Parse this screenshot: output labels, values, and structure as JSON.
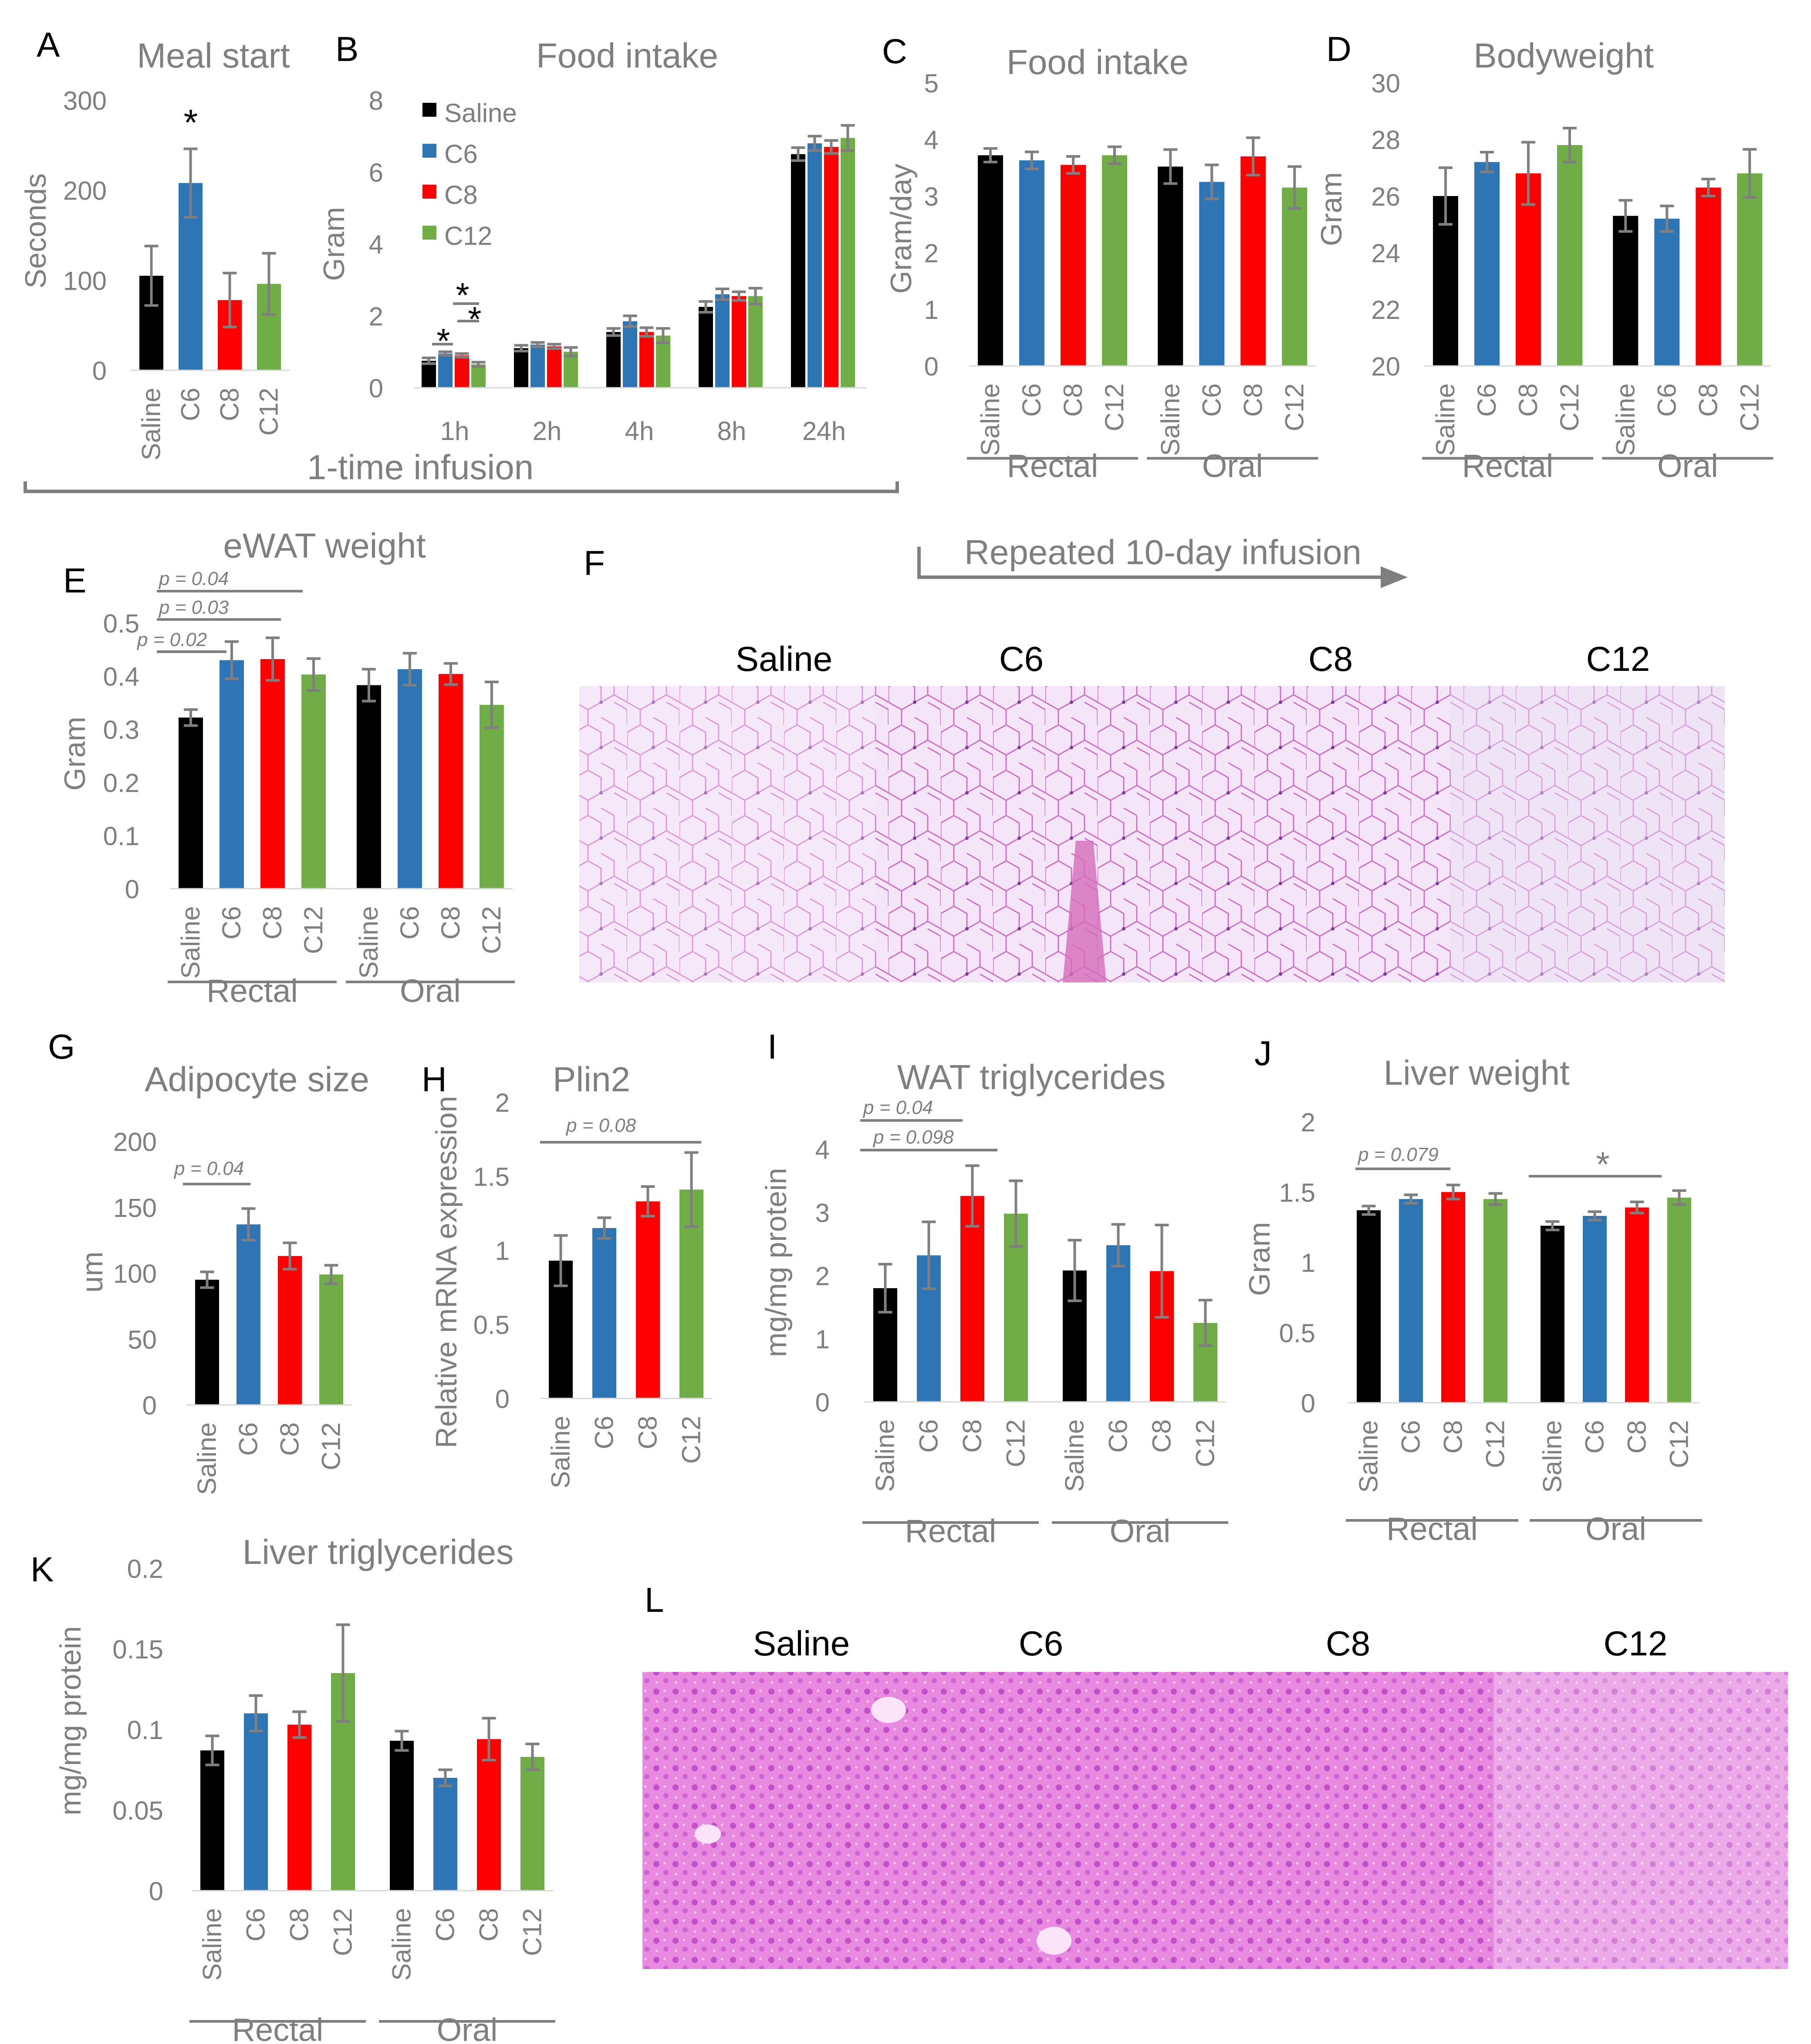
{
  "colors": {
    "saline": "#000000",
    "c6": "#2e75b6",
    "c8": "#ff0000",
    "c12": "#70ad47",
    "axis_text": "#7f7f7f",
    "err": "#7f7f7f"
  },
  "groups": [
    "Saline",
    "C6",
    "C8",
    "C12"
  ],
  "route_labels": {
    "rectal": "Rectal",
    "oral": "Oral"
  },
  "annotations": {
    "one_time": "1-time infusion",
    "repeated": "Repeated 10-day infusion",
    "star": "*"
  },
  "chart_data": [
    {
      "id": "A",
      "letter": "A",
      "type": "bar",
      "title": "Meal start",
      "ylabel": "Seconds",
      "ylim": [
        0,
        300
      ],
      "yticks": [
        "0",
        "100",
        "200",
        "300"
      ],
      "categories": [
        "Saline",
        "C6",
        "C8",
        "C12"
      ],
      "values": [
        105,
        208,
        78,
        96
      ],
      "errors": [
        33,
        38,
        30,
        34
      ],
      "stars": [
        {
          "bar": 1,
          "text": "*"
        }
      ]
    },
    {
      "id": "B",
      "letter": "B",
      "type": "bar",
      "title": "Food intake",
      "ylabel": "Gram",
      "ylim": [
        0,
        8
      ],
      "yticks": [
        "0",
        "2",
        "4",
        "6",
        "8"
      ],
      "categories": [
        "1h",
        "2h",
        "4h",
        "8h",
        "24h"
      ],
      "legend": [
        "Saline",
        "C6",
        "C8",
        "C12"
      ],
      "series": [
        {
          "name": "Saline",
          "values": [
            0.75,
            1.1,
            1.55,
            2.25,
            6.5
          ],
          "errors": [
            0.08,
            0.08,
            0.1,
            0.15,
            0.18
          ]
        },
        {
          "name": "C6",
          "values": [
            0.95,
            1.2,
            1.85,
            2.6,
            6.8
          ],
          "errors": [
            0.05,
            0.06,
            0.15,
            0.15,
            0.2
          ]
        },
        {
          "name": "C8",
          "values": [
            0.9,
            1.15,
            1.55,
            2.55,
            6.7
          ],
          "errors": [
            0.05,
            0.06,
            0.12,
            0.12,
            0.18
          ]
        },
        {
          "name": "C12",
          "values": [
            0.65,
            1.0,
            1.45,
            2.55,
            6.95
          ],
          "errors": [
            0.06,
            0.12,
            0.2,
            0.22,
            0.35
          ]
        }
      ],
      "stars": [
        "*",
        "*",
        "*"
      ]
    },
    {
      "id": "C",
      "letter": "C",
      "type": "bar",
      "title": "Food intake",
      "ylabel": "Gram/day",
      "ylim": [
        0,
        5
      ],
      "yticks": [
        "0",
        "1",
        "2",
        "3",
        "4",
        "5"
      ],
      "categories": [
        "Saline",
        "C6",
        "C8",
        "C12",
        "Saline",
        "C6",
        "C8",
        "C12"
      ],
      "values": [
        3.72,
        3.63,
        3.55,
        3.72,
        3.52,
        3.25,
        3.7,
        3.15
      ],
      "errors": [
        0.12,
        0.15,
        0.15,
        0.15,
        0.3,
        0.3,
        0.33,
        0.37
      ],
      "bracket": "Repeated 10-day infusion"
    },
    {
      "id": "D",
      "letter": "D",
      "type": "bar",
      "title": "Bodyweight",
      "ylabel": "Gram",
      "ylim": [
        20,
        30
      ],
      "yticks": [
        "20",
        "22",
        "24",
        "26",
        "28",
        "30"
      ],
      "categories": [
        "Saline",
        "C6",
        "C8",
        "C12",
        "Saline",
        "C6",
        "C8",
        "C12"
      ],
      "values": [
        26.0,
        27.2,
        26.8,
        27.8,
        25.3,
        25.2,
        26.3,
        26.8
      ],
      "errors": [
        1.0,
        0.35,
        1.1,
        0.6,
        0.55,
        0.45,
        0.3,
        0.85
      ]
    },
    {
      "id": "E",
      "letter": "E",
      "type": "bar",
      "title": "eWAT weight",
      "ylabel": "Gram",
      "ylim": [
        0,
        0.5
      ],
      "yticks": [
        "0",
        "0.1",
        "0.2",
        "0.3",
        "0.4",
        "0.5"
      ],
      "categories": [
        "Saline",
        "C6",
        "C8",
        "C12",
        "Saline",
        "C6",
        "C8",
        "C12"
      ],
      "values": [
        0.322,
        0.43,
        0.432,
        0.403,
        0.383,
        0.413,
        0.404,
        0.346
      ],
      "errors": [
        0.015,
        0.035,
        0.04,
        0.03,
        0.03,
        0.03,
        0.02,
        0.043
      ],
      "pvalues": [
        "p = 0.04",
        "p = 0.03",
        "p = 0.02"
      ]
    },
    {
      "id": "G",
      "letter": "G",
      "type": "bar",
      "title": "Adipocyte size",
      "ylabel": "um",
      "ylim": [
        0,
        200
      ],
      "yticks": [
        "0",
        "50",
        "100",
        "150",
        "200"
      ],
      "categories": [
        "Saline",
        "C6",
        "C8",
        "C12"
      ],
      "values": [
        95,
        137,
        113,
        99
      ],
      "errors": [
        6,
        12,
        10,
        7
      ],
      "pvalues": [
        "p = 0.04"
      ]
    },
    {
      "id": "H",
      "letter": "H",
      "type": "bar",
      "title": "Plin2",
      "ylabel": "Relative mRNA expression",
      "ylim": [
        0,
        2
      ],
      "yticks": [
        "0",
        "0.5",
        "1",
        "1.5",
        "2"
      ],
      "categories": [
        "Saline",
        "C6",
        "C8",
        "C12"
      ],
      "values": [
        0.93,
        1.15,
        1.33,
        1.41
      ],
      "errors": [
        0.17,
        0.07,
        0.1,
        0.25
      ],
      "pvalues": [
        "p = 0.08"
      ]
    },
    {
      "id": "I",
      "letter": "I",
      "type": "bar",
      "title": "WAT triglycerides",
      "ylabel": "mg/mg protein",
      "ylim": [
        0,
        4
      ],
      "yticks": [
        "0",
        "1",
        "2",
        "3",
        "4"
      ],
      "categories": [
        "Saline",
        "C6",
        "C8",
        "C12",
        "Saline",
        "C6",
        "C8",
        "C12"
      ],
      "values": [
        1.8,
        2.32,
        3.26,
        2.98,
        2.08,
        2.48,
        2.07,
        1.25
      ],
      "errors": [
        0.38,
        0.53,
        0.48,
        0.52,
        0.48,
        0.33,
        0.73,
        0.36
      ],
      "pvalues": [
        "p = 0.04",
        "p = 0.098"
      ]
    },
    {
      "id": "J",
      "letter": "J",
      "type": "bar",
      "title": "Liver weight",
      "ylabel": "Gram",
      "ylim": [
        0,
        2
      ],
      "yticks": [
        "0",
        "0.5",
        "1",
        "1.5",
        "2"
      ],
      "categories": [
        "Saline",
        "C6",
        "C8",
        "C12",
        "Saline",
        "C6",
        "C8",
        "C12"
      ],
      "values": [
        1.37,
        1.45,
        1.5,
        1.45,
        1.26,
        1.33,
        1.39,
        1.46
      ],
      "errors": [
        0.03,
        0.03,
        0.05,
        0.04,
        0.03,
        0.03,
        0.04,
        0.05
      ],
      "pvalues": [
        "p = 0.079"
      ],
      "stars": [
        "*"
      ]
    },
    {
      "id": "K",
      "letter": "K",
      "type": "bar",
      "title": "Liver triglycerides",
      "ylabel": "mg/mg protein",
      "ylim": [
        0,
        0.2
      ],
      "yticks": [
        "0",
        "0.05",
        "0.1",
        "0.15",
        "0.2"
      ],
      "categories": [
        "Saline",
        "C6",
        "C8",
        "C12",
        "Saline",
        "C6",
        "C8",
        "C12"
      ],
      "values": [
        0.087,
        0.11,
        0.103,
        0.135,
        0.093,
        0.07,
        0.094,
        0.083
      ],
      "errors": [
        0.009,
        0.011,
        0.008,
        0.03,
        0.006,
        0.005,
        0.013,
        0.008
      ]
    }
  ],
  "histology": {
    "F": {
      "letter": "F",
      "labels": [
        "Saline",
        "C6",
        "C8",
        "C12"
      ]
    },
    "L": {
      "letter": "L",
      "labels": [
        "Saline",
        "C6",
        "C8",
        "C12"
      ]
    }
  }
}
